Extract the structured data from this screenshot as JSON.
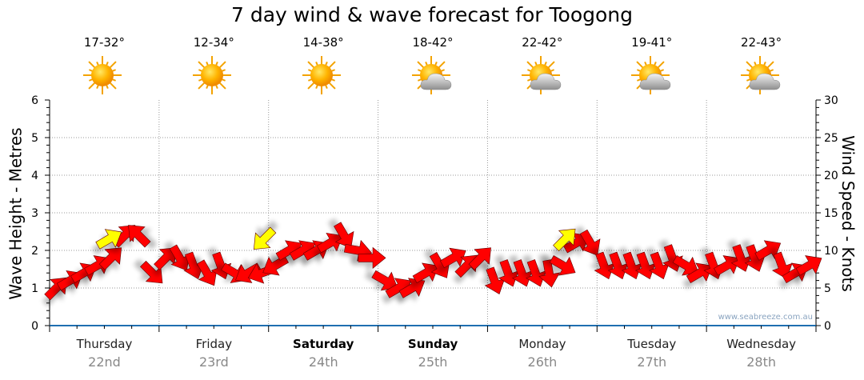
{
  "chart_data": {
    "type": "scatter",
    "title": "7 day wind & wave forecast for Toogong",
    "ylabel": "Wave Height - Metres",
    "y2label": "Wind Speed - Knots",
    "ylim": [
      0,
      6
    ],
    "y2lim": [
      0,
      30
    ],
    "yticks": [
      "0",
      "1",
      "2",
      "3",
      "4",
      "5",
      "6"
    ],
    "y2ticks": [
      "0",
      "5",
      "10",
      "15",
      "20",
      "25",
      "30"
    ],
    "grid": true,
    "days": [
      {
        "name": "Thursday",
        "date": "22nd",
        "temp": "17-32°",
        "icon": "sunny",
        "bold": false
      },
      {
        "name": "Friday",
        "date": "23rd",
        "temp": "12-34°",
        "icon": "sunny",
        "bold": false
      },
      {
        "name": "Saturday",
        "date": "24th",
        "temp": "14-38°",
        "icon": "sunny",
        "bold": true
      },
      {
        "name": "Sunday",
        "date": "25th",
        "temp": "18-42°",
        "icon": "partly-cloudy",
        "bold": true
      },
      {
        "name": "Monday",
        "date": "26th",
        "temp": "22-42°",
        "icon": "partly-cloudy",
        "bold": false
      },
      {
        "name": "Tuesday",
        "date": "27th",
        "temp": "19-41°",
        "icon": "partly-cloudy",
        "bold": false
      },
      {
        "name": "Wednesday",
        "date": "28th",
        "temp": "22-43°",
        "icon": "partly-cloudy",
        "bold": false
      }
    ],
    "wind": {
      "name": "Wind Speed (knots), arrow direction in degrees",
      "interval_hours": 3,
      "speed": [
        5,
        6,
        7,
        8,
        9,
        12,
        12,
        7,
        9,
        9,
        8,
        7,
        8,
        7,
        7,
        7,
        8,
        10,
        10,
        10,
        11,
        12,
        10,
        9,
        6,
        5,
        5,
        7,
        8,
        9,
        8,
        9,
        6,
        7,
        7,
        7,
        7,
        8,
        11,
        11,
        8,
        8,
        8,
        8,
        8,
        9,
        8,
        7,
        8,
        8,
        9,
        9,
        10,
        8,
        7,
        8
      ],
      "direction": [
        45,
        60,
        60,
        60,
        45,
        45,
        315,
        135,
        45,
        150,
        160,
        150,
        160,
        120,
        240,
        250,
        240,
        60,
        60,
        60,
        60,
        150,
        100,
        90,
        120,
        60,
        60,
        60,
        150,
        60,
        45,
        45,
        160,
        160,
        160,
        160,
        170,
        120,
        60,
        150,
        160,
        160,
        160,
        160,
        160,
        160,
        120,
        60,
        160,
        60,
        160,
        160,
        60,
        160,
        60,
        60
      ],
      "color": "#ff0000"
    },
    "waves": {
      "name": "Wave Height (m)",
      "points": [
        {
          "day": 0,
          "hour": 13,
          "height": 2.3,
          "direction": 60
        },
        {
          "day": 1,
          "hour": 23,
          "height": 2.3,
          "direction": 225
        },
        {
          "day": 4,
          "hour": 17,
          "height": 2.3,
          "direction": 45
        }
      ],
      "color": "#ffff00"
    }
  },
  "watermark": "www.seabreeze.com.au"
}
